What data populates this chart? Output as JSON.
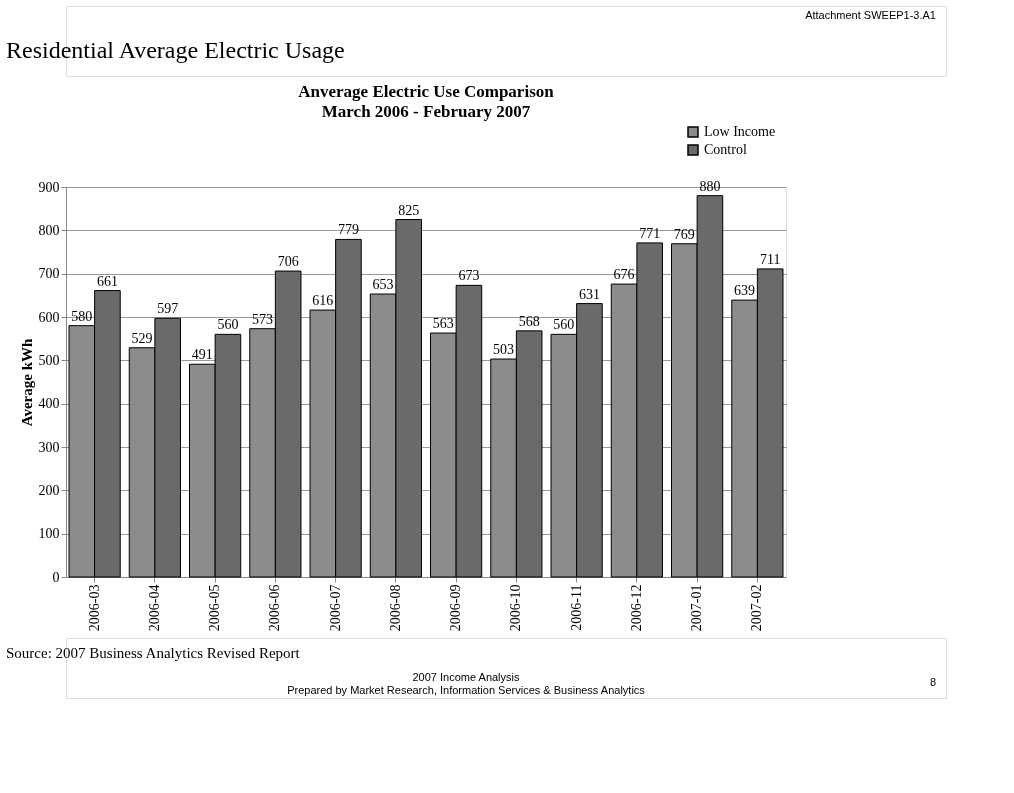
{
  "chart_data": {
    "type": "bar",
    "title": "Anverage Electric Use Comparison",
    "subtitle": "March 2006 - February 2007",
    "ylabel": "Average kWh",
    "categories": [
      "2006-03",
      "2006-04",
      "2006-05",
      "2006-06",
      "2006-07",
      "2006-08",
      "2006-09",
      "2006-10",
      "2006-11",
      "2006-12",
      "2007-01",
      "2007-02"
    ],
    "series": [
      {
        "name": "Low Income",
        "color": "#8c8c8c",
        "values": [
          580,
          529,
          491,
          573,
          616,
          653,
          563,
          503,
          560,
          676,
          769,
          639
        ]
      },
      {
        "name": "Control",
        "color": "#6a6a6a",
        "values": [
          661,
          597,
          560,
          706,
          779,
          825,
          673,
          568,
          631,
          771,
          880,
          711
        ]
      }
    ],
    "ylim": [
      0,
      900
    ],
    "yticks": [
      0,
      100,
      200,
      300,
      400,
      500,
      600,
      700,
      800,
      900
    ],
    "grid": "y",
    "legend": "top right",
    "data_labels": true,
    "annotations": [
      "Attachment SWEEP1-3.A1",
      "Residential Average Electric Usage",
      "Source: 2007 Business Analytics Revised Report",
      "2007 Income Analysis",
      "Prepared by Market Research, Information Services & Business Analytics",
      "8"
    ]
  }
}
